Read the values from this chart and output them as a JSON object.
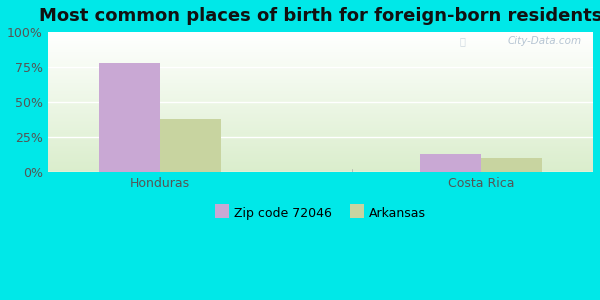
{
  "title": "Most common places of birth for foreign-born residents",
  "categories": [
    "Honduras",
    "Costa Rica"
  ],
  "series": [
    {
      "name": "Zip code 72046",
      "values": [
        78,
        13
      ],
      "color": "#c9a8d4"
    },
    {
      "name": "Arkansas",
      "values": [
        38,
        10
      ],
      "color": "#c8d4a0"
    }
  ],
  "ylim": [
    0,
    100
  ],
  "yticks": [
    0,
    25,
    50,
    75,
    100
  ],
  "ytick_labels": [
    "0%",
    "25%",
    "50%",
    "75%",
    "100%"
  ],
  "outer_bg": "#00e8e8",
  "title_fontsize": 13,
  "axis_label_fontsize": 9,
  "legend_fontsize": 9,
  "bar_width": 0.38,
  "watermark": "City-Data.com",
  "group_positions": [
    0.5,
    2.5
  ]
}
